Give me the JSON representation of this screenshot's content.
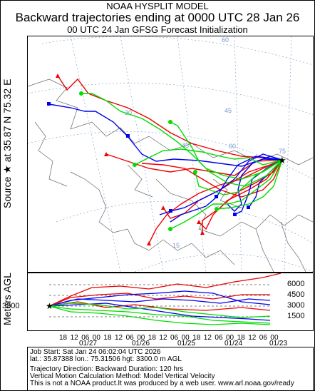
{
  "header": {
    "model": "NOAA HYSPLIT MODEL",
    "title": "Backward trajectories ending at 0000 UTC 28 Jan 26",
    "subtitle": "00 UTC 24 Jan    GFSG  Forecast Initialization"
  },
  "side": {
    "source": "Source ★ at   35.87 N   75.32 E",
    "agl": "Meters AGL"
  },
  "map": {
    "lat_labels": [
      "60",
      "45",
      "30",
      "15"
    ],
    "lon_labels": [
      "75",
      "60",
      "45",
      "30",
      "15"
    ]
  },
  "height_panel": {
    "start_height": "3300",
    "ticks": [
      "6000",
      "4500",
      "3000",
      "1500"
    ]
  },
  "time_axis": {
    "hours": [
      "18",
      "12",
      "06",
      "00",
      "18",
      "12",
      "06",
      "00",
      "18",
      "12",
      "06",
      "00",
      "18",
      "12",
      "06",
      "00",
      "18",
      "12",
      "06",
      "00"
    ],
    "dates": [
      "01/27",
      "01/26",
      "01/25",
      "01/24",
      "01/23"
    ]
  },
  "footer": {
    "line1": "Job Start: Sat Jan 24 06:02:04 UTC 2026",
    "line2": "lat.: 35.87388   lon.: 75.31506   hgt: 3300.0 m AGL",
    "line3": "Trajectory Direction: Backward       Duration: 120 hrs",
    "line4": "Vertical Motion Calculation Method: Model Vertical Velocity",
    "line5": "This is not a NOAA product.It was produced by a web user. www.arl.noaa.gov/ready"
  },
  "colors": {
    "red": "#ee0000",
    "blue": "#0000ee",
    "green": "#00dd00"
  }
}
